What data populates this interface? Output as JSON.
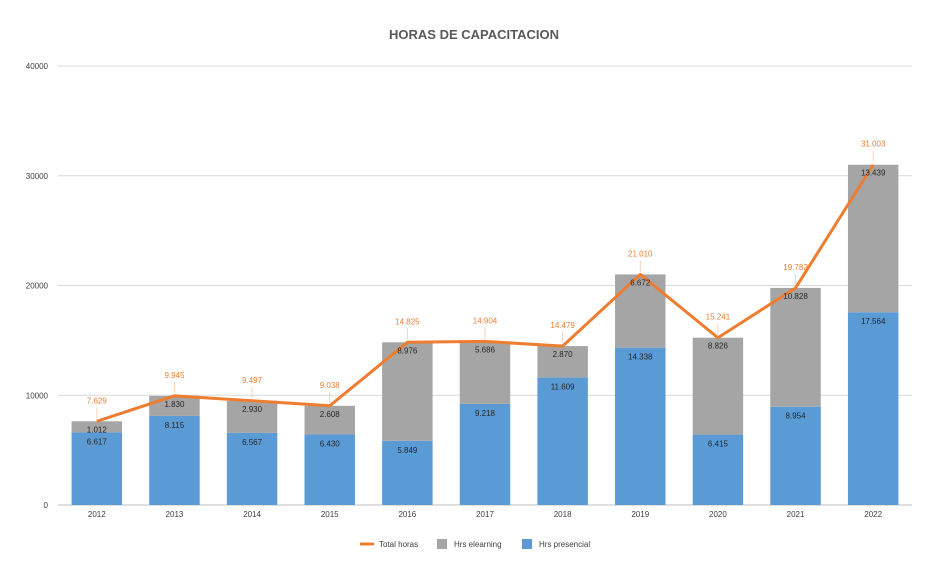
{
  "chart_data": {
    "type": "bar",
    "title": "HORAS DE CAPACITACION",
    "categories": [
      "2012",
      "2013",
      "2014",
      "2015",
      "2016",
      "2017",
      "2018",
      "2019",
      "2020",
      "2021",
      "2022"
    ],
    "ylim": [
      0,
      40000
    ],
    "yticks": [
      "0",
      "10000",
      "20000",
      "30000",
      "40000"
    ],
    "stacked": true,
    "grid": true,
    "legend_position": "bottom",
    "series": [
      {
        "name": "Hrs presencial",
        "color": "#5B9BD5",
        "values": [
          6617,
          8115,
          6567,
          6430,
          5849,
          9218,
          11609,
          14338,
          6415,
          8954,
          17564
        ],
        "labels": [
          "6.617",
          "8.115",
          "6.567",
          "6.430",
          "5.849",
          "9.218",
          "11.609",
          "14.338",
          "6.415",
          "8.954",
          "17.564"
        ]
      },
      {
        "name": "Hrs elearning",
        "color": "#A5A5A5",
        "values": [
          1012,
          1830,
          2930,
          2608,
          8976,
          5686,
          2870,
          6672,
          8826,
          10828,
          13439
        ],
        "labels": [
          "1.012",
          "1.830",
          "2.930",
          "2.608",
          "8.976",
          "5.686",
          "2.870",
          "6.672",
          "8.826",
          "10.828",
          "13.439"
        ]
      },
      {
        "name": "Total horas",
        "type": "line",
        "color": "#ED7D31",
        "values": [
          7629,
          9945,
          9497,
          9038,
          14825,
          14904,
          14479,
          21010,
          15241,
          19782,
          31003
        ],
        "labels": [
          "7.629",
          "9.945",
          "9.497",
          "9.038",
          "14.825",
          "14.904",
          "14.479",
          "21.010",
          "15.241",
          "19.782",
          "31.003"
        ]
      }
    ],
    "legend": [
      "Total horas",
      "Hrs elearning",
      "Hrs presencial"
    ]
  }
}
